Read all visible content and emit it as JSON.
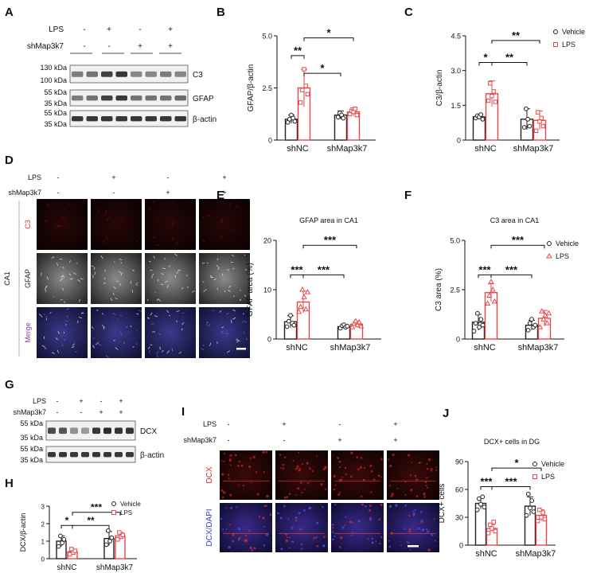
{
  "panels": {
    "A": {
      "letter": "A",
      "cond_rows": [
        {
          "label": "LPS",
          "signs": [
            "-",
            "+",
            "-",
            "+"
          ]
        },
        {
          "label": "shMap3k7",
          "signs": [
            "-",
            "-",
            "+",
            "+"
          ]
        }
      ],
      "blots": [
        {
          "name": "C3",
          "markers": [
            "130 kDa",
            "100 kDa"
          ],
          "bands": [
            0.55,
            0.6,
            0.85,
            0.9,
            0.5,
            0.5,
            0.55,
            0.5
          ]
        },
        {
          "name": "GFAP",
          "markers": [
            "55 kDa",
            "35 kDa"
          ],
          "bands": [
            0.55,
            0.6,
            0.85,
            0.9,
            0.6,
            0.6,
            0.6,
            0.65
          ]
        },
        {
          "name": "β-actin",
          "markers": [
            "55 kDa",
            "35 kDa"
          ],
          "bands": [
            0.9,
            0.9,
            0.9,
            0.9,
            0.9,
            0.9,
            0.9,
            0.9
          ]
        }
      ]
    },
    "D": {
      "letter": "D",
      "cond_rows": [
        {
          "label": "LPS",
          "signs": [
            "-",
            "+",
            "-",
            "+"
          ]
        },
        {
          "label": "shMap3k7",
          "signs": [
            "-",
            "-",
            "+",
            "+"
          ]
        }
      ],
      "region": "CA1",
      "rows": [
        "C3",
        "GFAP",
        "Merge"
      ],
      "row_colors": [
        "#d9292b",
        "#222222",
        "#8d43a6"
      ]
    },
    "G": {
      "letter": "G",
      "cond_rows": [
        {
          "label": "LPS",
          "signs": [
            "-",
            "+",
            "-",
            "+"
          ]
        },
        {
          "label": "shMap3k7",
          "signs": [
            "-",
            "-",
            "+",
            "+"
          ]
        }
      ],
      "blots": [
        {
          "name": "DCX",
          "markers": [
            "55 kDa",
            "35 kDa"
          ],
          "bands": [
            0.8,
            0.75,
            0.45,
            0.4,
            0.9,
            0.95,
            0.9,
            0.9
          ]
        },
        {
          "name": "β-actin",
          "markers": [
            "55 kDa",
            "35 kDa"
          ],
          "bands": [
            0.9,
            0.9,
            0.9,
            0.9,
            0.9,
            0.9,
            0.9,
            0.9
          ]
        }
      ]
    },
    "I": {
      "letter": "I",
      "cond_rows": [
        {
          "label": "LPS",
          "signs": [
            "-",
            "+",
            "-",
            "+"
          ]
        },
        {
          "label": "shMap3k7",
          "signs": [
            "-",
            "-",
            "+",
            "+"
          ]
        }
      ],
      "rows": [
        "DCX",
        "DCX/DAPI"
      ]
    }
  },
  "legend": {
    "vehicle": "Vehicle",
    "lps": "LPS",
    "vehicle_color": "#222222",
    "lps_color": "#e8474a"
  },
  "chart_data": [
    {
      "panel": "B",
      "type": "bar",
      "title": "",
      "xlabel": "",
      "ylabel": "GFAP/β-actin",
      "ylim": [
        0,
        5
      ],
      "yticks": [
        0,
        2.5,
        5.0
      ],
      "ytick_labels": [
        "0",
        "2.5",
        "5.0"
      ],
      "categories": [
        "shNC",
        "shMap3k7"
      ],
      "legend": false,
      "series": [
        {
          "name": "Vehicle",
          "values": [
            1.0,
            1.2
          ],
          "errors": [
            0.2,
            0.2
          ],
          "points": [
            [
              0.85,
              1.0,
              1.2,
              1.05,
              0.9
            ],
            [
              1.1,
              1.3,
              1.2,
              1.05
            ]
          ]
        },
        {
          "name": "LPS",
          "values": [
            2.5,
            1.35
          ],
          "errors": [
            0.9,
            0.2
          ],
          "points": [
            [
              1.8,
              2.4,
              3.4,
              2.6,
              2.2
            ],
            [
              1.25,
              1.4,
              1.35,
              1.5,
              1.2
            ]
          ]
        }
      ],
      "brackets": [
        {
          "from": [
            0,
            0
          ],
          "to": [
            0,
            1
          ],
          "y": 4.05,
          "label": "**"
        },
        {
          "from": [
            0,
            1
          ],
          "to": [
            1,
            0
          ],
          "y": 3.2,
          "label": "*"
        },
        {
          "from": [
            0,
            1
          ],
          "to": [
            1,
            1
          ],
          "y": 4.9,
          "label": "*"
        }
      ]
    },
    {
      "panel": "C",
      "type": "bar",
      "title": "",
      "xlabel": "",
      "ylabel": "C3/β-actin",
      "ylim": [
        0,
        4.5
      ],
      "yticks": [
        0,
        1.5,
        3.0,
        4.5
      ],
      "ytick_labels": [
        "0",
        "1.5",
        "3.0",
        "4.5"
      ],
      "categories": [
        "shNC",
        "shMap3k7"
      ],
      "legend": true,
      "series": [
        {
          "name": "Vehicle",
          "values": [
            1.0,
            0.9
          ],
          "errors": [
            0.1,
            0.45
          ],
          "points": [
            [
              0.95,
              1.05,
              1.0,
              1.1,
              0.9
            ],
            [
              0.55,
              1.35,
              0.9,
              0.6
            ]
          ]
        },
        {
          "name": "LPS",
          "values": [
            2.0,
            0.85
          ],
          "errors": [
            0.55,
            0.4
          ],
          "points": [
            [
              1.7,
              2.45,
              1.9,
              2.1,
              1.65
            ],
            [
              0.4,
              1.2,
              0.8,
              0.95,
              0.6
            ]
          ]
        }
      ],
      "brackets": [
        {
          "from": [
            0,
            0
          ],
          "to": [
            0,
            1
          ],
          "y": 3.35,
          "label": "*"
        },
        {
          "from": [
            0,
            1
          ],
          "to": [
            1,
            0
          ],
          "y": 3.35,
          "label": "**"
        },
        {
          "from": [
            0,
            1
          ],
          "to": [
            1,
            1
          ],
          "y": 4.3,
          "label": "**"
        }
      ]
    },
    {
      "panel": "E",
      "type": "bar",
      "title": "GFAP area in CA1",
      "xlabel": "",
      "ylabel": "GFAP area (%)",
      "ylim": [
        0,
        20
      ],
      "yticks": [
        0,
        10,
        20
      ],
      "ytick_labels": [
        "0",
        "10",
        "20"
      ],
      "categories": [
        "shNC",
        "shMap3k7"
      ],
      "legend": false,
      "marker_lps": "triangle",
      "series": [
        {
          "name": "Vehicle",
          "values": [
            3.5,
            2.5
          ],
          "errors": [
            1.2,
            0.4
          ],
          "points": [
            [
              2.5,
              3.6,
              4.8,
              3.2,
              2.8
            ],
            [
              2.2,
              2.7,
              2.9,
              2.4,
              2.6
            ]
          ]
        },
        {
          "name": "LPS",
          "values": [
            7.5,
            3.0
          ],
          "errors": [
            2.2,
            0.6
          ],
          "points": [
            [
              5.5,
              6.5,
              10.0,
              8.5,
              6.0,
              9.5
            ],
            [
              2.4,
              3.1,
              3.6,
              2.8,
              3.4,
              2.6
            ]
          ]
        }
      ],
      "brackets": [
        {
          "from": [
            0,
            0
          ],
          "to": [
            0,
            1
          ],
          "y": 13.0,
          "label": "***"
        },
        {
          "from": [
            0,
            1
          ],
          "to": [
            1,
            0
          ],
          "y": 13.0,
          "label": "***"
        },
        {
          "from": [
            0,
            1
          ],
          "to": [
            1,
            1
          ],
          "y": 19.0,
          "label": "***"
        }
      ]
    },
    {
      "panel": "F",
      "type": "bar",
      "title": "C3 area in CA1",
      "xlabel": "",
      "ylabel": "C3 area (%)",
      "ylim": [
        0,
        5.0
      ],
      "yticks": [
        0,
        2.5,
        5.0
      ],
      "ytick_labels": [
        "0",
        "2.5",
        "5.0"
      ],
      "categories": [
        "shNC",
        "shMap3k7"
      ],
      "legend": true,
      "marker_lps": "triangle",
      "series": [
        {
          "name": "Vehicle",
          "values": [
            0.85,
            0.7
          ],
          "errors": [
            0.4,
            0.25
          ],
          "points": [
            [
              0.4,
              0.8,
              1.3,
              0.6,
              1.0,
              0.7
            ],
            [
              0.45,
              0.8,
              1.0,
              0.6,
              0.7
            ]
          ]
        },
        {
          "name": "LPS",
          "values": [
            2.35,
            1.05
          ],
          "errors": [
            0.45,
            0.4
          ],
          "points": [
            [
              1.8,
              2.2,
              2.9,
              2.5,
              1.9
            ],
            [
              0.6,
              1.4,
              1.0,
              1.2,
              0.8,
              1.3
            ]
          ]
        }
      ],
      "brackets": [
        {
          "from": [
            0,
            0
          ],
          "to": [
            0,
            1
          ],
          "y": 3.25,
          "label": "***"
        },
        {
          "from": [
            0,
            1
          ],
          "to": [
            1,
            0
          ],
          "y": 3.25,
          "label": "***"
        },
        {
          "from": [
            0,
            1
          ],
          "to": [
            1,
            1
          ],
          "y": 4.75,
          "label": "***"
        }
      ]
    },
    {
      "panel": "H",
      "type": "bar",
      "title": "",
      "xlabel": "",
      "ylabel": "DCX/β-actin",
      "ylim": [
        0,
        3
      ],
      "yticks": [
        0,
        1,
        2,
        3
      ],
      "ytick_labels": [
        "0",
        "1",
        "2",
        "3"
      ],
      "categories": [
        "shNC",
        "shMap3k7"
      ],
      "legend": true,
      "series": [
        {
          "name": "Vehicle",
          "values": [
            1.0,
            1.15
          ],
          "errors": [
            0.3,
            0.4
          ],
          "points": [
            [
              0.7,
              1.3,
              0.9,
              1.1
            ],
            [
              0.8,
              1.6,
              1.0,
              1.2
            ]
          ]
        },
        {
          "name": "LPS",
          "values": [
            0.4,
            1.3
          ],
          "errors": [
            0.15,
            0.2
          ],
          "points": [
            [
              0.25,
              0.55,
              0.35,
              0.45
            ],
            [
              1.1,
              1.5,
              1.25,
              1.35
            ]
          ]
        }
      ],
      "brackets": [
        {
          "from": [
            0,
            0
          ],
          "to": [
            0,
            1
          ],
          "y": 1.9,
          "label": "*"
        },
        {
          "from": [
            0,
            1
          ],
          "to": [
            1,
            0
          ],
          "y": 1.9,
          "label": "**"
        },
        {
          "from": [
            0,
            1
          ],
          "to": [
            1,
            1
          ],
          "y": 2.65,
          "label": "***"
        }
      ]
    },
    {
      "panel": "J",
      "type": "bar",
      "title": "DCX+ cells  in DG",
      "xlabel": "",
      "ylabel": "DCX+ cells",
      "ylim": [
        0,
        90
      ],
      "yticks": [
        0,
        30,
        60,
        90
      ],
      "ytick_labels": [
        "0",
        "30",
        "60",
        "90"
      ],
      "categories": [
        "shNC",
        "shMap3k7"
      ],
      "legend": true,
      "series": [
        {
          "name": "Vehicle",
          "values": [
            45,
            42
          ],
          "errors": [
            6,
            10
          ],
          "points": [
            [
              38,
              50,
              44,
              52,
              41
            ],
            [
              32,
              55,
              40,
              48,
              36
            ]
          ]
        },
        {
          "name": "LPS",
          "values": [
            18,
            32
          ],
          "errors": [
            4,
            6
          ],
          "points": [
            [
              13,
              22,
              18,
              25,
              15
            ],
            [
              26,
              38,
              30,
              35,
              28
            ]
          ]
        }
      ],
      "brackets": [
        {
          "from": [
            0,
            0
          ],
          "to": [
            0,
            1
          ],
          "y": 63,
          "label": "***"
        },
        {
          "from": [
            0,
            1
          ],
          "to": [
            1,
            0
          ],
          "y": 63,
          "label": "***"
        },
        {
          "from": [
            0,
            1
          ],
          "to": [
            1,
            1
          ],
          "y": 83,
          "label": "*"
        }
      ]
    }
  ]
}
